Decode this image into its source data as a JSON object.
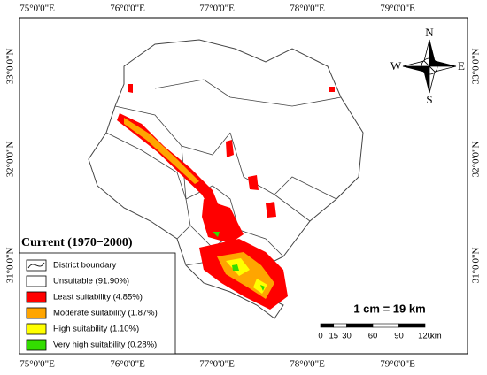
{
  "map": {
    "top_labels": [
      "75°0'0\"E",
      "76°0'0\"E",
      "77°0'0\"E",
      "78°0'0\"E",
      "79°0'0\"E"
    ],
    "bottom_labels": [
      "75°0'0\"E",
      "76°0'0\"E",
      "77°0'0\"E",
      "78°0'0\"E",
      "79°0'0\"E"
    ],
    "left_labels": [
      "33°0'0\"N",
      "32°0'0\"N",
      "31°0'0\"N"
    ],
    "right_labels": [
      "33°0'0\"N",
      "32°0'0\"N",
      "31°0'0\"N"
    ],
    "title": "Current (1970−2000)",
    "legend": [
      {
        "label": "District boundary",
        "color": "#ffffff"
      },
      {
        "label": "Unsuitable (91.90%)",
        "color": "#ffffff"
      },
      {
        "label": "Least suitability (4.85%)",
        "color": "#ff0000"
      },
      {
        "label": "Moderate suitability (1.87%)",
        "color": "#ffa500"
      },
      {
        "label": "High suitability (1.10%)",
        "color": "#ffff00"
      },
      {
        "label": "Very high suitability (0.28%)",
        "color": "#33dd00"
      }
    ],
    "compass": {
      "n": "N",
      "s": "S",
      "e": "E",
      "w": "W"
    },
    "scale": {
      "text": "1 cm = 19 km",
      "ticks": [
        0,
        15,
        30,
        60,
        90,
        120
      ],
      "unit": "km"
    }
  }
}
